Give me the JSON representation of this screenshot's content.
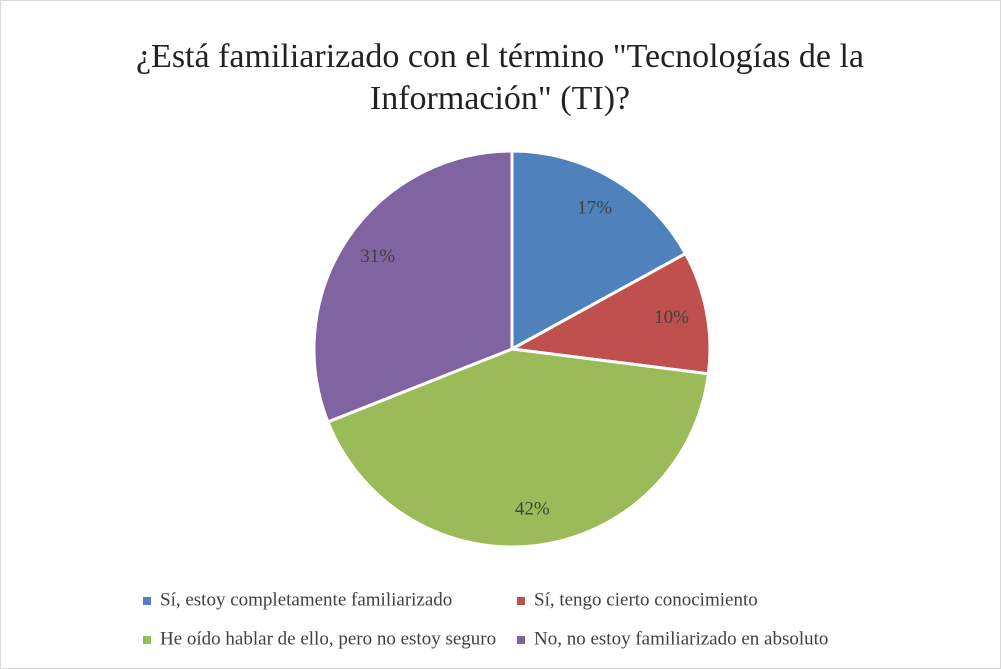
{
  "chart_data": {
    "type": "pie",
    "title": "¿Está familiarizado con el término \"Tecnologías de la Información\" (TI)?",
    "categories": [
      "Sí, estoy completamente familiarizado",
      "Sí, tengo cierto conocimiento",
      "He oído hablar de ello, pero no estoy seguro",
      "No, no estoy familiarizado en absoluto"
    ],
    "values": [
      17,
      10,
      42,
      31
    ],
    "value_labels": [
      "17%",
      "10%",
      "42%",
      "31%"
    ],
    "colors": [
      "#4f81bd",
      "#c0504d",
      "#9bbb59",
      "#8064a2"
    ],
    "legend": "bottom"
  }
}
